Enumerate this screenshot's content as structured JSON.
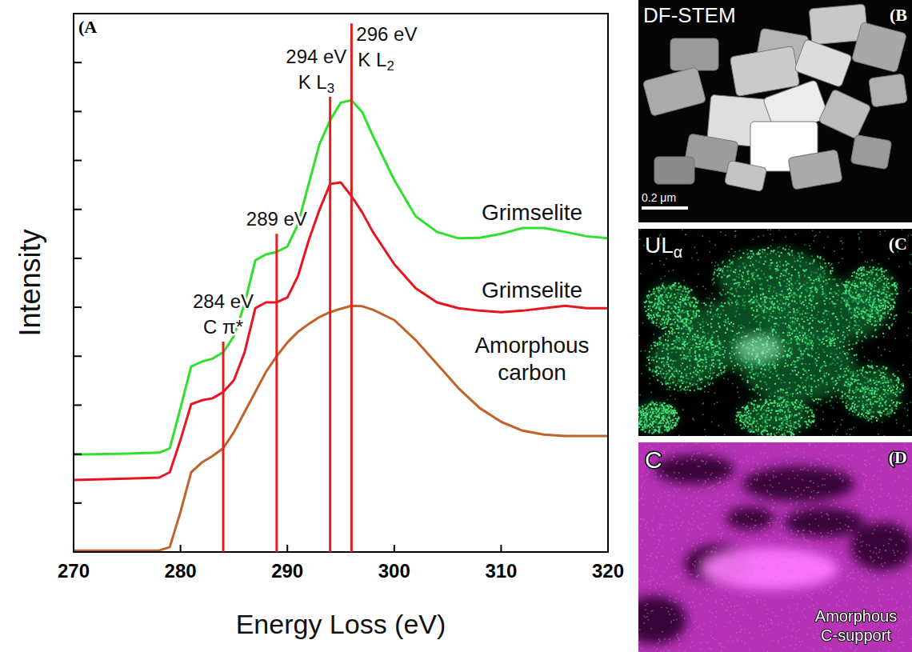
{
  "chart_data": {
    "type": "line",
    "panel_label": "(A",
    "x_label": "Energy Loss (eV)",
    "y_label": "Intensity",
    "xlim": [
      270,
      320
    ],
    "xticks": [
      270,
      280,
      290,
      300,
      310,
      320
    ],
    "ylim": [
      0,
      11
    ],
    "yticks": [
      0,
      1,
      2,
      3,
      4,
      5,
      6,
      7,
      8,
      9,
      10
    ],
    "tick_labels": "x",
    "x": [
      270,
      275,
      278,
      279,
      280,
      281,
      282,
      283,
      284,
      285,
      286,
      287,
      288,
      289,
      290,
      291,
      292,
      293,
      294,
      295,
      296,
      297,
      298,
      300,
      302,
      304,
      306,
      308,
      310,
      312,
      314,
      316,
      318,
      320
    ],
    "series": [
      {
        "name": "Grimselite",
        "color": "#2fe02f",
        "values": [
          1.99,
          2.01,
          2.03,
          2.12,
          2.94,
          3.79,
          3.89,
          3.95,
          4.08,
          4.41,
          5.07,
          5.96,
          6.08,
          6.13,
          6.24,
          6.7,
          7.52,
          8.33,
          8.82,
          9.18,
          9.23,
          8.99,
          8.5,
          7.6,
          6.86,
          6.54,
          6.41,
          6.42,
          6.5,
          6.62,
          6.62,
          6.54,
          6.45,
          6.41
        ]
      },
      {
        "name": "Grimselite",
        "color": "#e8141e",
        "values": [
          1.47,
          1.5,
          1.52,
          1.63,
          2.29,
          3.02,
          3.1,
          3.14,
          3.27,
          3.51,
          4.08,
          4.98,
          5.1,
          5.1,
          5.2,
          5.64,
          6.37,
          6.99,
          7.52,
          7.55,
          7.27,
          6.94,
          6.54,
          5.88,
          5.39,
          5.1,
          4.98,
          4.93,
          4.9,
          4.93,
          4.98,
          5.03,
          4.98,
          4.98
        ]
      },
      {
        "name": "Amorphous carbon",
        "color": "#c0622a",
        "values": [
          0.03,
          0.03,
          0.03,
          0.1,
          0.82,
          1.63,
          1.83,
          1.96,
          2.12,
          2.45,
          2.86,
          3.27,
          3.68,
          4.0,
          4.28,
          4.5,
          4.66,
          4.8,
          4.9,
          4.97,
          5.03,
          5.02,
          4.95,
          4.74,
          4.33,
          3.84,
          3.35,
          2.94,
          2.66,
          2.48,
          2.4,
          2.37,
          2.37,
          2.37
        ]
      }
    ],
    "annotations": [
      {
        "x": 284,
        "ymax": 4.3,
        "label": "284 eV",
        "sublabel": {
          "text": "C π*"
        }
      },
      {
        "x": 289,
        "ymax": 6.5,
        "label": "289 eV"
      },
      {
        "x": 294,
        "ymax": 9.3,
        "label": "294 eV",
        "sublabel": {
          "text": "K L",
          "subscript": "3"
        }
      },
      {
        "x": 296,
        "ymax": 10.8,
        "label": "296 eV",
        "sublabel": {
          "text": "K L",
          "subscript": "2"
        }
      }
    ]
  },
  "panels": [
    {
      "label": "(B",
      "title": "DF-STEM",
      "scale_bar": "0.2 μm"
    },
    {
      "label": "(C",
      "title": {
        "text": "UL",
        "subscript": "α"
      }
    },
    {
      "label": "(D",
      "title": "C",
      "note": "Amorphous C-support"
    }
  ]
}
